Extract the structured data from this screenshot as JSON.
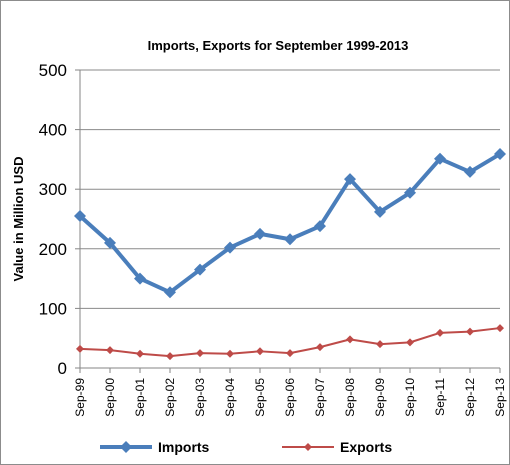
{
  "chart_data": {
    "type": "line",
    "title": "Imports, Exports for September 1999-2013",
    "xlabel": "",
    "ylabel": "Value in Million  USD",
    "ylim": [
      0,
      500
    ],
    "yticks": [
      "0",
      "100",
      "200",
      "300",
      "400",
      "500"
    ],
    "categories": [
      "Sep-99",
      "Sep-00",
      "Sep-01",
      "Sep-02",
      "Sep-03",
      "Sep-04",
      "Sep-05",
      "Sep-06",
      "Sep-07",
      "Sep-08",
      "Sep-09",
      "Sep-10",
      "Sep-11",
      "Sep-12",
      "Sep-13"
    ],
    "grid": "horizontal",
    "legend": "bottom",
    "series": [
      {
        "name": "Imports",
        "color": "#4a7ebb",
        "values": [
          255,
          210,
          150,
          127,
          165,
          202,
          225,
          216,
          238,
          317,
          262,
          294,
          351,
          329,
          359
        ]
      },
      {
        "name": "Exports",
        "color": "#be4b48",
        "values": [
          32,
          30,
          24,
          20,
          25,
          24,
          28,
          25,
          35,
          48,
          40,
          43,
          59,
          61,
          67
        ]
      }
    ]
  }
}
